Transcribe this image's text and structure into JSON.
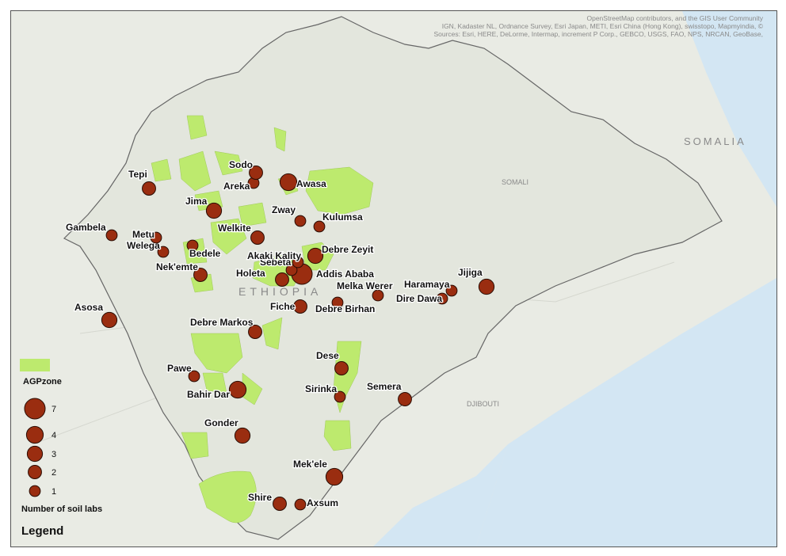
{
  "attribution": {
    "line1": "Sources: Esri, HERE, DeLorme, Intermap, increment P Corp., GEBCO, USGS, FAO, NPS, NRCAN, GeoBase,",
    "line2": "IGN, Kadaster NL, Ordnance Survey, Esri Japan, METI, Esri China (Hong Kong), swisstopo, Mapmyindia, ©",
    "line3": "OpenStreetMap contributors, and the GIS User Community"
  },
  "background_labels": {
    "somalia": "SOMALIA",
    "ethiopia": "ETHIOPIA",
    "djibouti": "DJIBOUTI",
    "somali": "SOMALI"
  },
  "legend": {
    "title": "Legend",
    "size_title": "Number of soil labs",
    "sizes": [
      "1",
      "2",
      "3",
      "4",
      "7"
    ],
    "zone_label": "AGPzone"
  },
  "colors": {
    "lab_fill": "#9a2d10",
    "lab_stroke": "#2a0d04",
    "zone_fill": "#bdea6e",
    "land": "#e8eae3",
    "water": "#cfe3f2"
  },
  "labs": [
    {
      "name": "Axsum",
      "count": 1
    },
    {
      "name": "Shire",
      "count": 2
    },
    {
      "name": "Mek'ele",
      "count": 4
    },
    {
      "name": "Gonder",
      "count": 3
    },
    {
      "name": "Semera",
      "count": 2
    },
    {
      "name": "Sirinka",
      "count": 1
    },
    {
      "name": "Bahir Dar",
      "count": 4
    },
    {
      "name": "Pawe",
      "count": 1
    },
    {
      "name": "Dese",
      "count": 2
    },
    {
      "name": "Debre Markos",
      "count": 2
    },
    {
      "name": "Asosa",
      "count": 3
    },
    {
      "name": "Fiche",
      "count": 2
    },
    {
      "name": "Debre Birhan",
      "count": 1
    },
    {
      "name": "Dire Dawa",
      "count": 1
    },
    {
      "name": "Melka Werer",
      "count": 1
    },
    {
      "name": "Haramaya",
      "count": 1
    },
    {
      "name": "Jijiga",
      "count": 3
    },
    {
      "name": "Holeta",
      "count": 2
    },
    {
      "name": "Addis Ababa",
      "count": 7
    },
    {
      "name": "Sebeta",
      "count": 1
    },
    {
      "name": "Akaki Kality",
      "count": 1
    },
    {
      "name": "Debre Zeyit",
      "count": 3
    },
    {
      "name": "Nek'emte",
      "count": 2
    },
    {
      "name": "Welega",
      "count": 1
    },
    {
      "name": "Bedele",
      "count": 1
    },
    {
      "name": "Metu",
      "count": 1
    },
    {
      "name": "Gambela",
      "count": 1
    },
    {
      "name": "Welkite",
      "count": 2
    },
    {
      "name": "Jima",
      "count": 3
    },
    {
      "name": "Zway",
      "count": 1
    },
    {
      "name": "Kulumsa",
      "count": 1
    },
    {
      "name": "Tepi",
      "count": 2
    },
    {
      "name": "Areka",
      "count": 1
    },
    {
      "name": "Sodo",
      "count": 2
    },
    {
      "name": "Awasa",
      "count": 4
    }
  ]
}
